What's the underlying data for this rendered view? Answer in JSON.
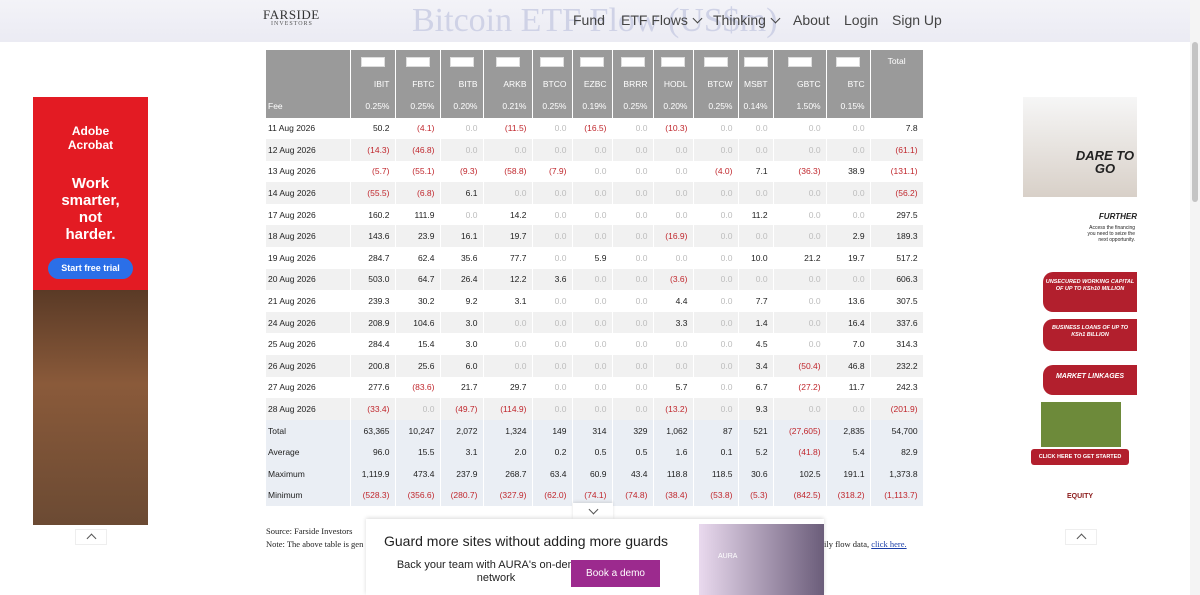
{
  "header": {
    "logo": "FARSIDE",
    "logo_sub": "INVESTORS",
    "title": "Bitcoin ETF Flow (US$m)",
    "nav": [
      "Fund",
      "ETF Flows",
      "Thinking",
      "About",
      "Login",
      "Sign Up"
    ]
  },
  "table": {
    "columns": [
      "IBIT",
      "FBTC",
      "BITB",
      "ARKB",
      "BTCO",
      "EZBC",
      "BRRR",
      "HODL",
      "BTCW",
      "MSBT",
      "GBTC",
      "BTC"
    ],
    "total_label": "Total",
    "fee_label": "Fee",
    "fees": [
      "0.25%",
      "0.25%",
      "0.20%",
      "0.21%",
      "0.25%",
      "0.19%",
      "0.25%",
      "0.20%",
      "0.25%",
      "0.14%",
      "1.50%",
      "0.15%"
    ],
    "rows": [
      [
        "11 Aug 2026",
        "50.2",
        "(4.1)",
        "0.0",
        "(11.5)",
        "0.0",
        "(16.5)",
        "0.0",
        "(10.3)",
        "0.0",
        "0.0",
        "0.0",
        "0.0",
        "7.8"
      ],
      [
        "12 Aug 2026",
        "(14.3)",
        "(46.8)",
        "0.0",
        "0.0",
        "0.0",
        "0.0",
        "0.0",
        "0.0",
        "0.0",
        "0.0",
        "0.0",
        "0.0",
        "(61.1)"
      ],
      [
        "13 Aug 2026",
        "(5.7)",
        "(55.1)",
        "(9.3)",
        "(58.8)",
        "(7.9)",
        "0.0",
        "0.0",
        "0.0",
        "(4.0)",
        "7.1",
        "(36.3)",
        "38.9",
        "(131.1)"
      ],
      [
        "14 Aug 2026",
        "(55.5)",
        "(6.8)",
        "6.1",
        "0.0",
        "0.0",
        "0.0",
        "0.0",
        "0.0",
        "0.0",
        "0.0",
        "0.0",
        "0.0",
        "(56.2)"
      ],
      [
        "17 Aug 2026",
        "160.2",
        "111.9",
        "0.0",
        "14.2",
        "0.0",
        "0.0",
        "0.0",
        "0.0",
        "0.0",
        "11.2",
        "0.0",
        "0.0",
        "297.5"
      ],
      [
        "18 Aug 2026",
        "143.6",
        "23.9",
        "16.1",
        "19.7",
        "0.0",
        "0.0",
        "0.0",
        "(16.9)",
        "0.0",
        "0.0",
        "0.0",
        "2.9",
        "189.3"
      ],
      [
        "19 Aug 2026",
        "284.7",
        "62.4",
        "35.6",
        "77.7",
        "0.0",
        "5.9",
        "0.0",
        "0.0",
        "0.0",
        "10.0",
        "21.2",
        "19.7",
        "517.2"
      ],
      [
        "20 Aug 2026",
        "503.0",
        "64.7",
        "26.4",
        "12.2",
        "3.6",
        "0.0",
        "0.0",
        "(3.6)",
        "0.0",
        "0.0",
        "0.0",
        "0.0",
        "606.3"
      ],
      [
        "21 Aug 2026",
        "239.3",
        "30.2",
        "9.2",
        "3.1",
        "0.0",
        "0.0",
        "0.0",
        "4.4",
        "0.0",
        "7.7",
        "0.0",
        "13.6",
        "307.5"
      ],
      [
        "24 Aug 2026",
        "208.9",
        "104.6",
        "3.0",
        "0.0",
        "0.0",
        "0.0",
        "0.0",
        "3.3",
        "0.0",
        "1.4",
        "0.0",
        "16.4",
        "337.6"
      ],
      [
        "25 Aug 2026",
        "284.4",
        "15.4",
        "3.0",
        "0.0",
        "0.0",
        "0.0",
        "0.0",
        "0.0",
        "0.0",
        "4.5",
        "0.0",
        "7.0",
        "314.3"
      ],
      [
        "26 Aug 2026",
        "200.8",
        "25.6",
        "6.0",
        "0.0",
        "0.0",
        "0.0",
        "0.0",
        "0.0",
        "0.0",
        "3.4",
        "(50.4)",
        "46.8",
        "232.2"
      ],
      [
        "27 Aug 2026",
        "277.6",
        "(83.6)",
        "21.7",
        "29.7",
        "0.0",
        "0.0",
        "0.0",
        "5.7",
        "0.0",
        "6.7",
        "(27.2)",
        "11.7",
        "242.3"
      ],
      [
        "28 Aug 2026",
        "(33.4)",
        "0.0",
        "(49.7)",
        "(114.9)",
        "0.0",
        "0.0",
        "0.0",
        "(13.2)",
        "0.0",
        "9.3",
        "0.0",
        "0.0",
        "(201.9)"
      ]
    ],
    "summary": [
      [
        "Total",
        "63,365",
        "10,247",
        "2,072",
        "1,324",
        "149",
        "314",
        "329",
        "1,062",
        "87",
        "521",
        "(27,605)",
        "2,835",
        "54,700"
      ],
      [
        "Average",
        "96.0",
        "15.5",
        "3.1",
        "2.0",
        "0.2",
        "0.5",
        "0.5",
        "1.6",
        "0.1",
        "5.2",
        "(41.8)",
        "5.4",
        "82.9"
      ],
      [
        "Maximum",
        "1,119.9",
        "473.4",
        "237.9",
        "268.7",
        "63.4",
        "60.9",
        "43.4",
        "118.8",
        "118.5",
        "30.6",
        "102.5",
        "191.1",
        "1,373.8"
      ],
      [
        "Minimum",
        "(528.3)",
        "(356.6)",
        "(280.7)",
        "(327.9)",
        "(62.0)",
        "(74.1)",
        "(74.8)",
        "(38.4)",
        "(53.8)",
        "(5.3)",
        "(842.5)",
        "(318.2)",
        "(1,113.7)"
      ]
    ]
  },
  "footer": {
    "source": "Source: Farside Investors",
    "note": "Note: The above table is gen",
    "note_tail": "ily flow data, ",
    "link": "click here."
  },
  "ad_left": {
    "brand": "Adobe Acrobat",
    "headline": "Work smarter, not harder.",
    "cta": "Start free trial"
  },
  "ad_right": {
    "headline": "DARE TO GO",
    "sub": "FURTHER",
    "blurb": "Access the financing you need to seize the next opportunity.",
    "offer1": "UNSECURED WORKING CAPITAL OF UP TO KSh10 MILLION",
    "offer2": "BUSINESS LOANS OF UP TO KSh1 BILLION",
    "offer3": "MARKET LINKAGES",
    "cta": "CLICK HERE TO GET STARTED",
    "brand": "EQUITY"
  },
  "ad_bottom": {
    "headline": "Guard more sites without adding more guards",
    "body": "Back your team with AURA's on-demand network",
    "cta": "Book a demo",
    "brand": "AURA"
  }
}
